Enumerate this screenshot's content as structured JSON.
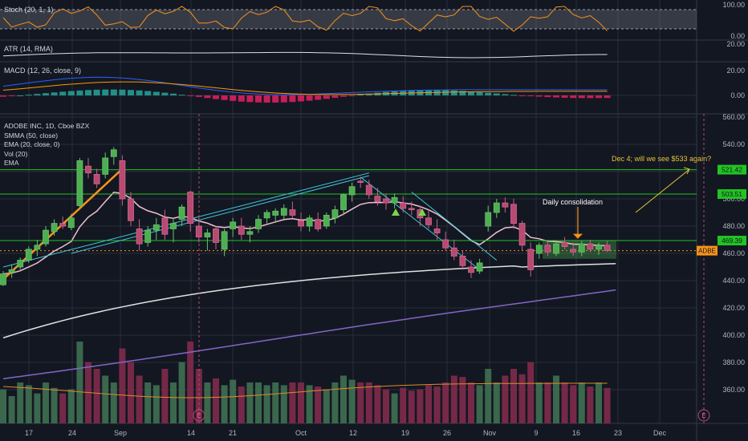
{
  "colors": {
    "background": "#131722",
    "grid": "#2a2e39",
    "separator": "#363a45",
    "up": "#26a69a",
    "up_fill": "#4caf50",
    "down": "#b84a72",
    "axis_text": "#b2b5be",
    "green_line": "#22c322",
    "orange": "#f7931a",
    "cyan": "#40c8dc",
    "smma": "#e0e0e0",
    "ema20": "#f0c0cf",
    "long_ema": "#8266c8",
    "vol_ma": "#e08a2a",
    "annotation": "#e6c33a"
  },
  "price_pane": {
    "legend": [
      "ADOBE INC, 1D, Cboe BZX",
      "SMMA (50, close)",
      "EMA (20, close, 0)",
      "Vol (20)",
      "EMA"
    ],
    "axis_ticks": [
      "560.00",
      "540.00",
      "520.00",
      "500.00",
      "480.00",
      "460.00",
      "440.00",
      "420.00",
      "400.00",
      "380.00",
      "360.00"
    ],
    "level_labels": [
      "521.42",
      "503.51",
      "469.39"
    ],
    "symbol_tag": "ADBE",
    "annotations": {
      "consolidation": "Daily consolidation",
      "question": "Dec 4; will we see $533 again?"
    },
    "event_marker": "E"
  },
  "stoch_pane": {
    "legend": "Stoch (20, 1, 1)",
    "axis_ticks": [
      "100.00",
      "0.00"
    ]
  },
  "atr_pane": {
    "legend": "ATR (14, RMA)",
    "axis_ticks": [
      "20.00"
    ]
  },
  "macd_pane": {
    "legend": "MACD (12, 26, close, 9)",
    "axis_ticks": [
      "20.00",
      "0.00"
    ]
  },
  "x_axis": {
    "ticks": [
      "17",
      "24",
      "Sep",
      "14",
      "21",
      "Oct",
      "12",
      "19",
      "26",
      "Nov",
      "9",
      "16",
      "23",
      "Dec"
    ]
  },
  "chart_data": {
    "type": "candlestick",
    "symbol": "ADBE",
    "timeframe": "1D",
    "ylim": [
      345,
      560
    ],
    "candles": [
      {
        "o": 437,
        "h": 447,
        "l": 436,
        "c": 445
      },
      {
        "o": 446,
        "h": 452,
        "l": 442,
        "c": 448
      },
      {
        "o": 450,
        "h": 457,
        "l": 448,
        "c": 455
      },
      {
        "o": 455,
        "h": 465,
        "l": 453,
        "c": 463
      },
      {
        "o": 463,
        "h": 470,
        "l": 458,
        "c": 466
      },
      {
        "o": 467,
        "h": 480,
        "l": 465,
        "c": 477
      },
      {
        "o": 476,
        "h": 485,
        "l": 473,
        "c": 482
      },
      {
        "o": 482,
        "h": 487,
        "l": 478,
        "c": 480
      },
      {
        "o": 479,
        "h": 489,
        "l": 477,
        "c": 486
      },
      {
        "o": 495,
        "h": 530,
        "l": 492,
        "c": 528
      },
      {
        "o": 524,
        "h": 530,
        "l": 515,
        "c": 519
      },
      {
        "o": 518,
        "h": 522,
        "l": 508,
        "c": 511
      },
      {
        "o": 518,
        "h": 534,
        "l": 515,
        "c": 530
      },
      {
        "o": 531,
        "h": 538,
        "l": 525,
        "c": 536
      },
      {
        "o": 528,
        "h": 532,
        "l": 495,
        "c": 500
      },
      {
        "o": 500,
        "h": 505,
        "l": 480,
        "c": 484
      },
      {
        "o": 478,
        "h": 485,
        "l": 462,
        "c": 467
      },
      {
        "o": 468,
        "h": 480,
        "l": 465,
        "c": 477
      },
      {
        "o": 477,
        "h": 486,
        "l": 470,
        "c": 481
      },
      {
        "o": 486,
        "h": 492,
        "l": 470,
        "c": 474
      },
      {
        "o": 478,
        "h": 486,
        "l": 468,
        "c": 482
      },
      {
        "o": 485,
        "h": 496,
        "l": 480,
        "c": 494
      },
      {
        "o": 505,
        "h": 506,
        "l": 476,
        "c": 482
      },
      {
        "o": 480,
        "h": 487,
        "l": 468,
        "c": 472
      },
      {
        "o": 472,
        "h": 478,
        "l": 462,
        "c": 475
      },
      {
        "o": 478,
        "h": 480,
        "l": 463,
        "c": 468
      },
      {
        "o": 463,
        "h": 478,
        "l": 458,
        "c": 476
      },
      {
        "o": 478,
        "h": 486,
        "l": 472,
        "c": 483
      },
      {
        "o": 480,
        "h": 486,
        "l": 470,
        "c": 474
      },
      {
        "o": 474,
        "h": 480,
        "l": 468,
        "c": 476
      },
      {
        "o": 478,
        "h": 488,
        "l": 475,
        "c": 485
      },
      {
        "o": 486,
        "h": 492,
        "l": 482,
        "c": 490
      },
      {
        "o": 488,
        "h": 493,
        "l": 483,
        "c": 491
      },
      {
        "o": 488,
        "h": 496,
        "l": 484,
        "c": 493
      },
      {
        "o": 492,
        "h": 498,
        "l": 486,
        "c": 488
      },
      {
        "o": 484,
        "h": 490,
        "l": 476,
        "c": 480
      },
      {
        "o": 480,
        "h": 488,
        "l": 476,
        "c": 486
      },
      {
        "o": 485,
        "h": 490,
        "l": 476,
        "c": 478
      },
      {
        "o": 480,
        "h": 490,
        "l": 478,
        "c": 488
      },
      {
        "o": 486,
        "h": 495,
        "l": 482,
        "c": 492
      },
      {
        "o": 492,
        "h": 504,
        "l": 488,
        "c": 503
      },
      {
        "o": 503,
        "h": 512,
        "l": 498,
        "c": 509
      },
      {
        "o": 513,
        "h": 516,
        "l": 508,
        "c": 512
      },
      {
        "o": 510,
        "h": 514,
        "l": 500,
        "c": 503
      },
      {
        "o": 502,
        "h": 508,
        "l": 495,
        "c": 498
      },
      {
        "o": 500,
        "h": 504,
        "l": 492,
        "c": 497
      },
      {
        "o": 497,
        "h": 504,
        "l": 493,
        "c": 501
      },
      {
        "o": 497,
        "h": 502,
        "l": 490,
        "c": 493
      },
      {
        "o": 493,
        "h": 498,
        "l": 488,
        "c": 492
      },
      {
        "o": 492,
        "h": 495,
        "l": 480,
        "c": 486
      },
      {
        "o": 486,
        "h": 492,
        "l": 478,
        "c": 481
      },
      {
        "o": 478,
        "h": 485,
        "l": 470,
        "c": 475
      },
      {
        "o": 470,
        "h": 476,
        "l": 462,
        "c": 464
      },
      {
        "o": 464,
        "h": 470,
        "l": 455,
        "c": 458
      },
      {
        "o": 458,
        "h": 462,
        "l": 448,
        "c": 451
      },
      {
        "o": 450,
        "h": 455,
        "l": 442,
        "c": 446
      },
      {
        "o": 447,
        "h": 456,
        "l": 445,
        "c": 453
      },
      {
        "o": 480,
        "h": 495,
        "l": 476,
        "c": 490
      },
      {
        "o": 490,
        "h": 500,
        "l": 486,
        "c": 497
      },
      {
        "o": 497,
        "h": 501,
        "l": 490,
        "c": 494
      },
      {
        "o": 496,
        "h": 500,
        "l": 478,
        "c": 482
      },
      {
        "o": 482,
        "h": 484,
        "l": 462,
        "c": 466
      },
      {
        "o": 463,
        "h": 468,
        "l": 443,
        "c": 448
      },
      {
        "o": 460,
        "h": 468,
        "l": 456,
        "c": 466
      },
      {
        "o": 466,
        "h": 470,
        "l": 458,
        "c": 461
      },
      {
        "o": 460,
        "h": 469,
        "l": 458,
        "c": 467
      },
      {
        "o": 468,
        "h": 472,
        "l": 463,
        "c": 465
      },
      {
        "o": 463,
        "h": 468,
        "l": 458,
        "c": 461
      },
      {
        "o": 461,
        "h": 469,
        "l": 458,
        "c": 467
      },
      {
        "o": 467,
        "h": 470,
        "l": 461,
        "c": 463
      },
      {
        "o": 463,
        "h": 468,
        "l": 459,
        "c": 466
      },
      {
        "o": 466,
        "h": 469,
        "l": 461,
        "c": 462
      }
    ],
    "volume": [
      0.25,
      0.2,
      0.3,
      0.28,
      0.22,
      0.3,
      0.26,
      0.22,
      0.25,
      0.6,
      0.45,
      0.4,
      0.35,
      0.3,
      0.55,
      0.45,
      0.35,
      0.3,
      0.28,
      0.4,
      0.3,
      0.45,
      0.6,
      0.4,
      0.3,
      0.33,
      0.28,
      0.32,
      0.27,
      0.3,
      0.3,
      0.28,
      0.3,
      0.28,
      0.3,
      0.3,
      0.28,
      0.27,
      0.25,
      0.3,
      0.35,
      0.32,
      0.3,
      0.3,
      0.28,
      0.25,
      0.22,
      0.26,
      0.24,
      0.25,
      0.28,
      0.27,
      0.3,
      0.35,
      0.34,
      0.3,
      0.28,
      0.4,
      0.3,
      0.35,
      0.4,
      0.36,
      0.45,
      0.3,
      0.3,
      0.35,
      0.3,
      0.28,
      0.3,
      0.27,
      0.3,
      0.26
    ],
    "levels": [
      521.42,
      503.51,
      469.39
    ],
    "last_price": 462
  }
}
